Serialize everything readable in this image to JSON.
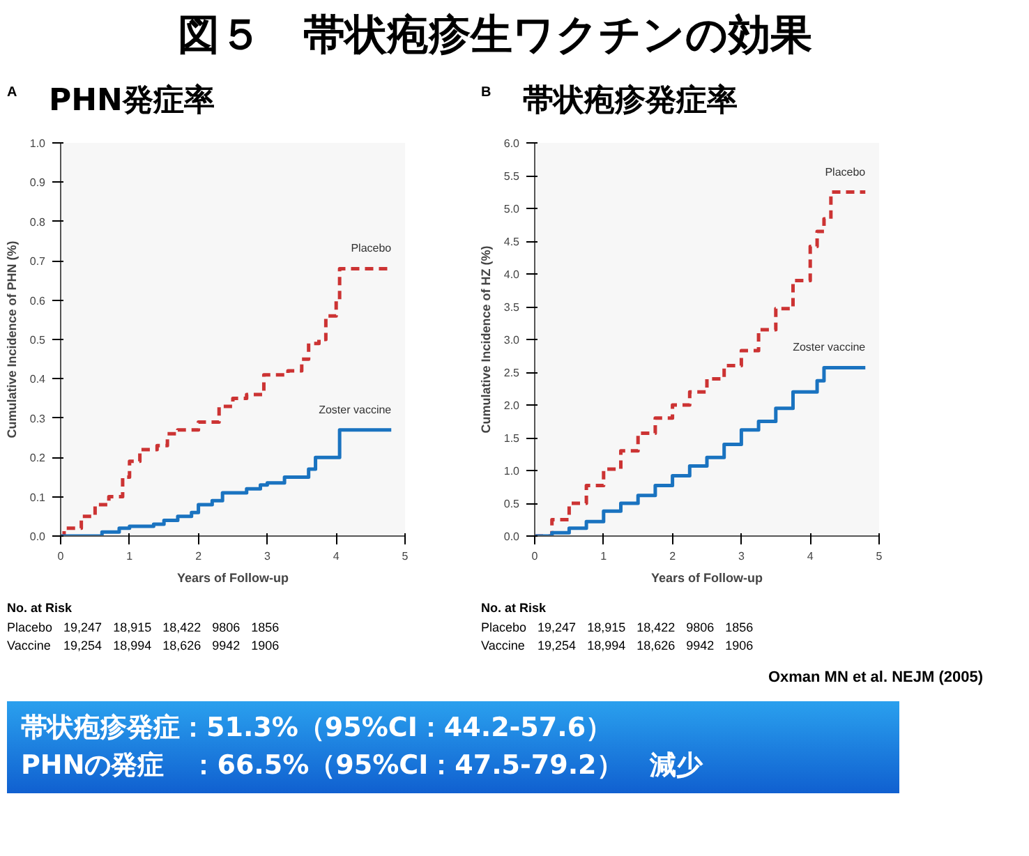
{
  "chart_data": [
    {
      "type": "other",
      "title": "図５　帯状疱疹生ワクチンの効果",
      "annotations": [
        "Oxman MN et al. NEJM (2005)",
        "帯状疱疹発症：51.3%（95%CI：44.2-57.6）",
        "PHNの発症　：66.5%（95%CI：47.5-79.2）　減少"
      ]
    },
    {
      "type": "step",
      "title": "PHN発症率",
      "xlabel": "Years of Follow-up",
      "ylabel": "Cumulative Incidence of PHN (%)",
      "xlim": [
        0,
        5
      ],
      "ylim": [
        0,
        1.0
      ],
      "xticks": [
        0,
        1,
        2,
        3,
        4,
        5
      ],
      "yticks": [
        {
          "value": 0,
          "label": "0.0"
        },
        0.1,
        0.2,
        0.3,
        0.4,
        0.5,
        0.6,
        0.7,
        0.8,
        0.9,
        {
          "value": 1,
          "label": "1.0"
        }
      ],
      "grid": false,
      "annotations": [
        "A",
        "No. at Risk",
        "Placebo 19,247 18,915 18,422 9806 1856",
        "Vaccine 19,254 18,994 18,626 9942 1906"
      ],
      "series": [
        {
          "name": "Placebo",
          "color": "#cc3333",
          "line_style": "dashed",
          "x": [
            0,
            0.05,
            0.3,
            0.5,
            0.7,
            0.9,
            1.0,
            1.15,
            1.4,
            1.55,
            1.7,
            2.0,
            2.3,
            2.5,
            2.7,
            2.95,
            3.3,
            3.5,
            3.6,
            3.75,
            3.85,
            4.0,
            4.05,
            4.8
          ],
          "values": [
            0,
            0.02,
            0.05,
            0.08,
            0.1,
            0.15,
            0.19,
            0.22,
            0.23,
            0.26,
            0.27,
            0.29,
            0.33,
            0.35,
            0.36,
            0.41,
            0.42,
            0.45,
            0.49,
            0.5,
            0.56,
            0.6,
            0.68,
            0.68
          ]
        },
        {
          "name": "Zoster vaccine",
          "color": "#1a73c0",
          "line_style": "solid",
          "x": [
            0,
            0.4,
            0.6,
            0.85,
            1.0,
            1.35,
            1.5,
            1.7,
            1.9,
            2.0,
            2.2,
            2.35,
            2.7,
            2.9,
            3.0,
            3.25,
            3.6,
            3.7,
            4.05,
            4.8
          ],
          "values": [
            0,
            0,
            0.01,
            0.02,
            0.025,
            0.03,
            0.04,
            0.05,
            0.06,
            0.08,
            0.09,
            0.11,
            0.12,
            0.13,
            0.135,
            0.15,
            0.17,
            0.2,
            0.27,
            0.27
          ]
        }
      ]
    },
    {
      "type": "step",
      "title": "帯状疱疹発症率",
      "xlabel": "Years of Follow-up",
      "ylabel": "Cumulative Incidence of HZ (%)",
      "xlim": [
        0,
        5
      ],
      "ylim": [
        0,
        6.0
      ],
      "xticks": [
        0,
        1,
        2,
        3,
        4,
        5
      ],
      "yticks": [
        {
          "value": 0,
          "label": "0.0"
        },
        0.5,
        {
          "value": 1,
          "label": "1.0"
        },
        1.5,
        {
          "value": 2,
          "label": "2.0"
        },
        2.5,
        {
          "value": 3,
          "label": "3.0"
        },
        3.5,
        {
          "value": 4,
          "label": "4.0"
        },
        4.5,
        {
          "value": 5,
          "label": "5.0"
        },
        5.5,
        {
          "value": 6,
          "label": "6.0"
        }
      ],
      "grid": false,
      "annotations": [
        "B",
        "No. at Risk",
        "Placebo 19,247 18,915 18,422 9806 1856",
        "Vaccine 19,254 18,994 18,626 9942 1906"
      ],
      "series": [
        {
          "name": "Placebo",
          "color": "#cc3333",
          "line_style": "dashed",
          "x": [
            0,
            0.25,
            0.5,
            0.75,
            1,
            1.25,
            1.5,
            1.75,
            2,
            2.25,
            2.5,
            2.75,
            3,
            3.25,
            3.5,
            3.75,
            4,
            4.1,
            4.2,
            4.3,
            4.8
          ],
          "values": [
            0,
            0.25,
            0.5,
            0.77,
            1.02,
            1.3,
            1.57,
            1.8,
            2.0,
            2.2,
            2.4,
            2.6,
            2.83,
            3.15,
            3.47,
            3.9,
            4.42,
            4.65,
            4.84,
            5.25,
            5.25
          ]
        },
        {
          "name": "Zoster vaccine",
          "color": "#1a73c0",
          "line_style": "solid",
          "x": [
            0,
            0.25,
            0.5,
            0.75,
            1,
            1.25,
            1.5,
            1.75,
            2,
            2.25,
            2.5,
            2.75,
            3,
            3.25,
            3.5,
            3.75,
            4.05,
            4.1,
            4.2,
            4.8
          ],
          "values": [
            0,
            0.05,
            0.12,
            0.22,
            0.38,
            0.5,
            0.62,
            0.77,
            0.92,
            1.07,
            1.2,
            1.4,
            1.62,
            1.75,
            1.95,
            2.2,
            2.2,
            2.37,
            2.57,
            2.57
          ]
        }
      ]
    }
  ]
}
